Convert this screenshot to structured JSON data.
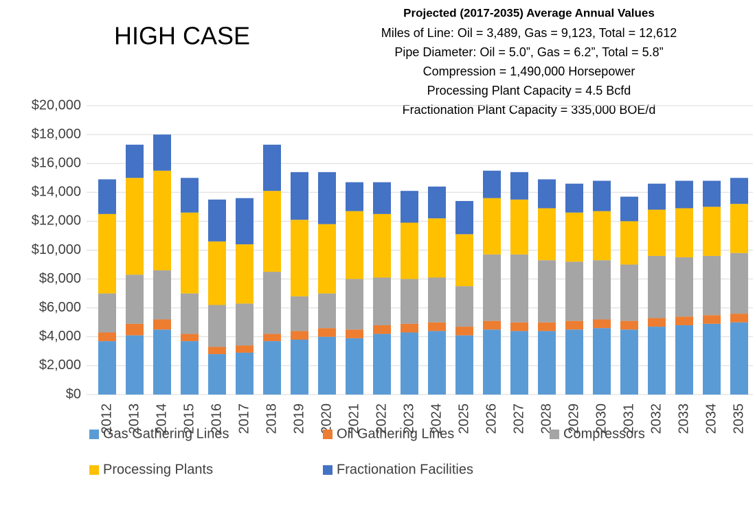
{
  "chart_data": {
    "type": "stacked_bar",
    "title": "HIGH CASE",
    "annotation_title": "Projected (2017-2035) Average Annual Values",
    "annotations": [
      "Miles of Line: Oil = 3,489, Gas = 9,123, Total = 12,612",
      "Pipe Diameter: Oil = 5.0”, Gas = 6.2”, Total = 5.8”",
      "Compression = 1,490,000 Horsepower",
      "Processing Plant Capacity = 4.5 Bcfd",
      "Fractionation Plant Capacity = 335,000 BOE/d"
    ],
    "categories": [
      "2012",
      "2013",
      "2014",
      "2015",
      "2016",
      "2017",
      "2018",
      "2019",
      "2020",
      "2021",
      "2022",
      "2023",
      "2024",
      "2025",
      "2026",
      "2027",
      "2028",
      "2029",
      "2030",
      "2031",
      "2032",
      "2033",
      "2034",
      "2035"
    ],
    "series": [
      {
        "name": "Gas Gathering Lines",
        "color": "#5b9bd5",
        "values": [
          3700,
          4100,
          4500,
          3700,
          2800,
          2900,
          3700,
          3800,
          4000,
          3900,
          4200,
          4300,
          4400,
          4100,
          4500,
          4400,
          4400,
          4500,
          4600,
          4500,
          4700,
          4800,
          4900,
          5000
        ]
      },
      {
        "name": "Oil Gathering Lines",
        "color": "#ed7d31",
        "values": [
          600,
          800,
          700,
          500,
          500,
          500,
          500,
          600,
          600,
          600,
          600,
          600,
          600,
          600,
          600,
          600,
          600,
          600,
          600,
          600,
          600,
          600,
          600,
          600
        ]
      },
      {
        "name": "Compressors",
        "color": "#a5a5a5",
        "values": [
          2700,
          3400,
          3400,
          2800,
          2900,
          2900,
          4300,
          2400,
          2400,
          3500,
          3300,
          3100,
          3100,
          2800,
          4600,
          4700,
          4300,
          4100,
          4100,
          3900,
          4300,
          4100,
          4100,
          4200
        ]
      },
      {
        "name": "Processing Plants",
        "color": "#ffc000",
        "values": [
          5500,
          6700,
          6900,
          5600,
          4400,
          4100,
          5600,
          5300,
          4800,
          4700,
          4400,
          3900,
          4100,
          3600,
          3900,
          3800,
          3600,
          3400,
          3400,
          3000,
          3200,
          3400,
          3400,
          3400
        ]
      },
      {
        "name": "Fractionation Facilities",
        "color": "#4472c4",
        "values": [
          2400,
          2300,
          2500,
          2400,
          2900,
          3200,
          3200,
          3300,
          3600,
          2000,
          2200,
          2200,
          2200,
          2300,
          1900,
          1900,
          2000,
          2000,
          2100,
          1700,
          1800,
          1900,
          1800,
          1800
        ]
      }
    ],
    "ylim": [
      0,
      20000
    ],
    "yticks": [
      {
        "value": 0,
        "label": "$0"
      },
      {
        "value": 2000,
        "label": "$2,000"
      },
      {
        "value": 4000,
        "label": "$4,000"
      },
      {
        "value": 6000,
        "label": "$6,000"
      },
      {
        "value": 8000,
        "label": "$8,000"
      },
      {
        "value": 10000,
        "label": "$10,000"
      },
      {
        "value": 12000,
        "label": "$12,000"
      },
      {
        "value": 14000,
        "label": "$14,000"
      },
      {
        "value": 16000,
        "label": "$16,000"
      },
      {
        "value": 18000,
        "label": "$18,000"
      },
      {
        "value": 20000,
        "label": "$20,000"
      }
    ],
    "grid": true,
    "legend": "bottom"
  }
}
